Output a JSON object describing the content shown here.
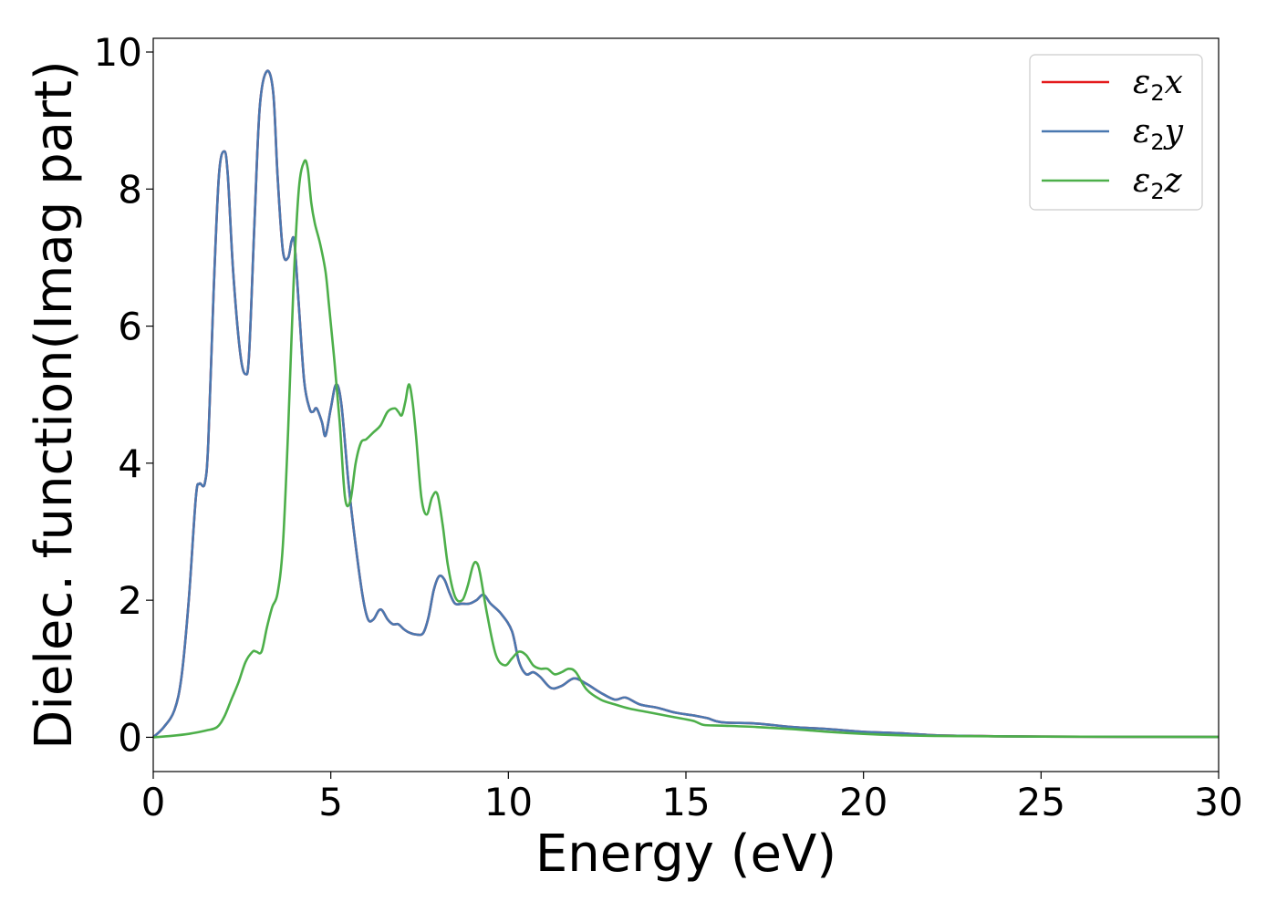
{
  "chart_data": {
    "type": "line",
    "xlabel": "Energy (eV)",
    "ylabel": "Dielec. function(Imag part)",
    "xlim": [
      0,
      30
    ],
    "ylim": [
      -0.5,
      10.2
    ],
    "xticks": [
      0,
      5,
      10,
      15,
      20,
      25,
      30
    ],
    "yticks": [
      0,
      2,
      4,
      6,
      8,
      10
    ],
    "xtick_labels": [
      "0",
      "5",
      "10",
      "15",
      "20",
      "25",
      "30"
    ],
    "ytick_labels": [
      "0",
      "2",
      "4",
      "6",
      "8",
      "10"
    ],
    "grid": false,
    "legend_position": "top-right",
    "series": [
      {
        "name": "ε₂x",
        "legend": {
          "symbol": "ε",
          "sub": "2",
          "var": "x"
        },
        "color": "#e41a1c",
        "x": [
          0,
          0.3,
          0.6,
          0.8,
          1.0,
          1.2,
          1.3,
          1.45,
          1.55,
          1.7,
          1.85,
          2.0,
          2.1,
          2.25,
          2.45,
          2.6,
          2.7,
          2.85,
          3.0,
          3.2,
          3.38,
          3.5,
          3.65,
          3.8,
          3.9,
          3.98,
          4.1,
          4.25,
          4.4,
          4.5,
          4.6,
          4.75,
          4.85,
          5.0,
          5.15,
          5.3,
          5.5,
          5.7,
          5.9,
          6.05,
          6.2,
          6.35,
          6.45,
          6.6,
          6.75,
          6.9,
          7.05,
          7.2,
          7.4,
          7.6,
          7.75,
          7.9,
          8.05,
          8.2,
          8.35,
          8.5,
          8.7,
          8.9,
          9.1,
          9.3,
          9.5,
          9.8,
          10.1,
          10.3,
          10.5,
          10.7,
          10.9,
          11.2,
          11.5,
          11.85,
          12.2,
          12.6,
          13.0,
          13.3,
          13.7,
          14.2,
          14.7,
          15.2,
          15.6,
          16.0,
          17.0,
          18.0,
          19.0,
          20.0,
          21.0,
          22.0,
          23.0,
          25.0,
          30.0
        ],
        "y": [
          0,
          0.15,
          0.4,
          0.9,
          2.0,
          3.5,
          3.7,
          3.7,
          4.3,
          6.5,
          8.2,
          8.55,
          8.2,
          6.8,
          5.6,
          5.3,
          5.6,
          7.5,
          9.2,
          9.72,
          9.4,
          8.2,
          7.1,
          7.0,
          7.25,
          7.2,
          6.3,
          5.2,
          4.8,
          4.75,
          4.8,
          4.6,
          4.4,
          4.8,
          5.15,
          4.85,
          3.7,
          2.8,
          2.05,
          1.72,
          1.72,
          1.85,
          1.85,
          1.72,
          1.65,
          1.65,
          1.58,
          1.53,
          1.5,
          1.52,
          1.75,
          2.15,
          2.35,
          2.3,
          2.1,
          1.95,
          1.95,
          1.95,
          2.0,
          2.08,
          1.95,
          1.8,
          1.55,
          1.1,
          0.92,
          0.95,
          0.88,
          0.72,
          0.75,
          0.86,
          0.78,
          0.65,
          0.55,
          0.58,
          0.48,
          0.43,
          0.36,
          0.32,
          0.28,
          0.22,
          0.2,
          0.15,
          0.12,
          0.08,
          0.06,
          0.03,
          0.02,
          0.01,
          0.005
        ]
      },
      {
        "name": "ε₂y",
        "legend": {
          "symbol": "ε",
          "sub": "2",
          "var": "y"
        },
        "color": "#4a78b0",
        "x": [
          0,
          0.3,
          0.6,
          0.8,
          1.0,
          1.2,
          1.3,
          1.45,
          1.55,
          1.7,
          1.85,
          2.0,
          2.1,
          2.25,
          2.45,
          2.6,
          2.7,
          2.85,
          3.0,
          3.2,
          3.38,
          3.5,
          3.65,
          3.8,
          3.9,
          3.98,
          4.1,
          4.25,
          4.4,
          4.5,
          4.6,
          4.75,
          4.85,
          5.0,
          5.15,
          5.3,
          5.5,
          5.7,
          5.9,
          6.05,
          6.2,
          6.35,
          6.45,
          6.6,
          6.75,
          6.9,
          7.05,
          7.2,
          7.4,
          7.6,
          7.75,
          7.9,
          8.05,
          8.2,
          8.35,
          8.5,
          8.7,
          8.9,
          9.1,
          9.3,
          9.5,
          9.8,
          10.1,
          10.3,
          10.5,
          10.7,
          10.9,
          11.2,
          11.5,
          11.85,
          12.2,
          12.6,
          13.0,
          13.3,
          13.7,
          14.2,
          14.7,
          15.2,
          15.6,
          16.0,
          17.0,
          18.0,
          19.0,
          20.0,
          21.0,
          22.0,
          23.0,
          25.0,
          30.0
        ],
        "y": [
          0,
          0.15,
          0.4,
          0.9,
          2.0,
          3.5,
          3.7,
          3.7,
          4.3,
          6.5,
          8.2,
          8.55,
          8.2,
          6.8,
          5.6,
          5.3,
          5.6,
          7.5,
          9.2,
          9.72,
          9.4,
          8.2,
          7.1,
          7.0,
          7.25,
          7.2,
          6.3,
          5.2,
          4.8,
          4.75,
          4.8,
          4.6,
          4.4,
          4.8,
          5.15,
          4.85,
          3.7,
          2.8,
          2.05,
          1.72,
          1.72,
          1.85,
          1.85,
          1.72,
          1.65,
          1.65,
          1.58,
          1.53,
          1.5,
          1.52,
          1.75,
          2.15,
          2.35,
          2.3,
          2.1,
          1.95,
          1.95,
          1.95,
          2.0,
          2.08,
          1.95,
          1.8,
          1.55,
          1.1,
          0.92,
          0.95,
          0.88,
          0.72,
          0.75,
          0.86,
          0.78,
          0.65,
          0.55,
          0.58,
          0.48,
          0.43,
          0.36,
          0.32,
          0.28,
          0.22,
          0.2,
          0.15,
          0.12,
          0.08,
          0.06,
          0.03,
          0.02,
          0.01,
          0.005
        ]
      },
      {
        "name": "ε₂z",
        "legend": {
          "symbol": "ε",
          "sub": "2",
          "var": "z"
        },
        "color": "#4daf4a",
        "x": [
          0,
          0.5,
          1.0,
          1.5,
          1.8,
          2.0,
          2.2,
          2.4,
          2.6,
          2.8,
          2.9,
          3.05,
          3.2,
          3.35,
          3.5,
          3.65,
          3.8,
          3.95,
          4.1,
          4.25,
          4.35,
          4.45,
          4.55,
          4.7,
          4.85,
          4.95,
          5.1,
          5.25,
          5.4,
          5.55,
          5.7,
          5.85,
          6.0,
          6.2,
          6.4,
          6.6,
          6.8,
          6.9,
          7.0,
          7.1,
          7.2,
          7.3,
          7.4,
          7.55,
          7.7,
          7.85,
          8.0,
          8.15,
          8.3,
          8.5,
          8.7,
          8.85,
          9.0,
          9.1,
          9.2,
          9.4,
          9.65,
          9.9,
          10.1,
          10.3,
          10.5,
          10.7,
          10.9,
          11.1,
          11.3,
          11.5,
          11.7,
          11.9,
          12.2,
          12.6,
          13.0,
          13.4,
          14.0,
          14.6,
          15.2,
          15.5,
          16.0,
          17.0,
          18.0,
          19.0,
          20.0,
          21.0,
          22.0,
          25.0,
          30.0
        ],
        "y": [
          0,
          0.02,
          0.05,
          0.1,
          0.15,
          0.3,
          0.55,
          0.8,
          1.1,
          1.25,
          1.25,
          1.25,
          1.6,
          1.9,
          2.1,
          2.8,
          4.5,
          6.6,
          8.0,
          8.4,
          8.3,
          7.8,
          7.5,
          7.2,
          6.8,
          6.3,
          5.5,
          4.6,
          3.5,
          3.45,
          4.0,
          4.3,
          4.35,
          4.45,
          4.55,
          4.75,
          4.8,
          4.75,
          4.7,
          4.9,
          5.15,
          4.9,
          4.4,
          3.5,
          3.25,
          3.5,
          3.55,
          3.1,
          2.5,
          2.05,
          2.0,
          2.2,
          2.5,
          2.55,
          2.4,
          1.8,
          1.2,
          1.05,
          1.15,
          1.25,
          1.2,
          1.05,
          1.0,
          1.0,
          0.92,
          0.95,
          1.0,
          0.95,
          0.7,
          0.55,
          0.48,
          0.42,
          0.36,
          0.3,
          0.24,
          0.18,
          0.17,
          0.15,
          0.12,
          0.08,
          0.05,
          0.03,
          0.02,
          0.01,
          0.005
        ]
      }
    ]
  }
}
